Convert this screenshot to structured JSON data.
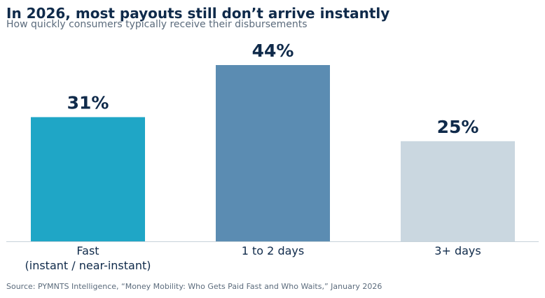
{
  "header": {
    "title": "In 2026, most payouts still don’t arrive instantly",
    "subtitle": "How quickly consumers typically receive their disbursements"
  },
  "chart_data": {
    "type": "bar",
    "categories": [
      [
        "Fast",
        "(instant / near-instant)"
      ],
      [
        "1 to 2 days"
      ],
      [
        "3+ days"
      ]
    ],
    "values": [
      31,
      44,
      25
    ],
    "value_labels": [
      "31%",
      "44%",
      "25%"
    ],
    "colors": [
      "#1fa6c6",
      "#5b8cb2",
      "#cad7e0"
    ],
    "ylim": [
      0,
      44
    ],
    "grid": false,
    "legend": "none"
  },
  "footer": {
    "source": "Source: PYMNTS Intelligence, “Money Mobility: Who Gets Paid Fast and Who Waits,” January 2026"
  }
}
